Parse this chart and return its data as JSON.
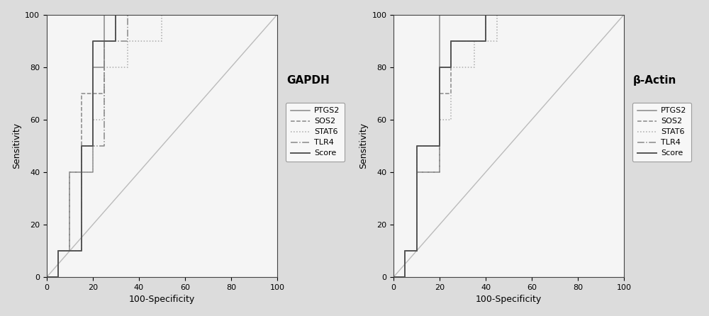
{
  "gapdh_title": "GAPDH",
  "beta_actin_title": "β-Actin",
  "xlabel": "100-Specificity",
  "ylabel": "Sensitivity",
  "xlim": [
    0,
    100
  ],
  "ylim": [
    0,
    100
  ],
  "xticks": [
    0,
    20,
    40,
    60,
    80,
    100
  ],
  "yticks": [
    0,
    20,
    40,
    60,
    80,
    100
  ],
  "legend_labels": [
    "PTGS2",
    "SOS2",
    "STAT6",
    "TLR4",
    "Score"
  ],
  "gapdh_curves": {
    "PTGS2": {
      "x": [
        0,
        5,
        5,
        10,
        10,
        20,
        20,
        25,
        25,
        100
      ],
      "y": [
        0,
        0,
        10,
        10,
        40,
        40,
        80,
        80,
        100,
        100
      ]
    },
    "SOS2": {
      "x": [
        0,
        5,
        5,
        10,
        10,
        15,
        15,
        25,
        25,
        30,
        30,
        100
      ],
      "y": [
        0,
        0,
        10,
        10,
        40,
        40,
        70,
        70,
        90,
        90,
        100,
        100
      ]
    },
    "STAT6": {
      "x": [
        0,
        5,
        5,
        10,
        10,
        20,
        20,
        25,
        25,
        35,
        35,
        50,
        50,
        100
      ],
      "y": [
        0,
        0,
        10,
        10,
        40,
        40,
        60,
        60,
        80,
        80,
        90,
        90,
        100,
        100
      ]
    },
    "TLR4": {
      "x": [
        0,
        5,
        5,
        15,
        15,
        25,
        25,
        35,
        35,
        100
      ],
      "y": [
        0,
        0,
        10,
        10,
        50,
        50,
        90,
        90,
        100,
        100
      ]
    },
    "Score": {
      "x": [
        0,
        5,
        5,
        15,
        15,
        20,
        20,
        30,
        30,
        100
      ],
      "y": [
        0,
        0,
        10,
        10,
        50,
        50,
        90,
        90,
        100,
        100
      ]
    }
  },
  "beta_actin_curves": {
    "PTGS2": {
      "x": [
        0,
        5,
        5,
        10,
        10,
        20,
        20,
        45,
        45,
        100
      ],
      "y": [
        0,
        0,
        10,
        10,
        40,
        40,
        100,
        100,
        100,
        100
      ]
    },
    "SOS2": {
      "x": [
        0,
        5,
        5,
        10,
        10,
        20,
        20,
        25,
        25,
        40,
        40,
        100
      ],
      "y": [
        0,
        0,
        10,
        10,
        40,
        40,
        70,
        70,
        90,
        90,
        100,
        100
      ]
    },
    "STAT6": {
      "x": [
        0,
        5,
        5,
        10,
        10,
        20,
        20,
        25,
        25,
        35,
        35,
        45,
        45,
        100
      ],
      "y": [
        0,
        0,
        10,
        10,
        40,
        40,
        60,
        60,
        80,
        80,
        90,
        90,
        100,
        100
      ]
    },
    "TLR4": {
      "x": [
        0,
        5,
        5,
        10,
        10,
        20,
        20,
        25,
        25,
        40,
        40,
        100
      ],
      "y": [
        0,
        0,
        10,
        10,
        50,
        50,
        80,
        80,
        90,
        90,
        100,
        100
      ]
    },
    "Score": {
      "x": [
        0,
        5,
        5,
        10,
        10,
        20,
        20,
        25,
        25,
        40,
        40,
        100
      ],
      "y": [
        0,
        0,
        10,
        10,
        50,
        50,
        80,
        80,
        90,
        90,
        100,
        100
      ]
    }
  },
  "line_styles": {
    "PTGS2": {
      "ls": "-",
      "lw": 1.1,
      "color": "#888888"
    },
    "SOS2": {
      "ls": "--",
      "lw": 1.1,
      "color": "#888888"
    },
    "STAT6": {
      "ls": ":",
      "lw": 1.1,
      "color": "#aaaaaa"
    },
    "TLR4": {
      "ls": "-.",
      "lw": 1.1,
      "color": "#888888"
    },
    "Score": {
      "ls": "-",
      "lw": 1.4,
      "color": "#555555"
    }
  },
  "diag_color": "#bbbbbb",
  "plot_bg": "#f5f5f5",
  "fig_bg": "#dcdcdc",
  "title_fontsize": 11,
  "label_fontsize": 9,
  "tick_fontsize": 8,
  "legend_fontsize": 8
}
